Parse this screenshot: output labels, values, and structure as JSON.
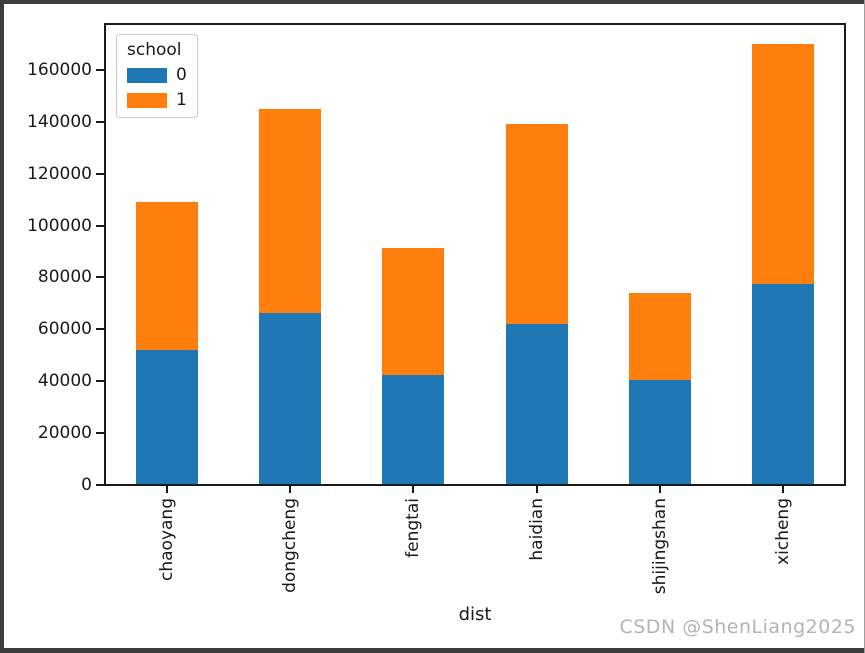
{
  "watermark": "CSDN @ShenLiang2025",
  "chart_data": {
    "type": "bar",
    "stacked": true,
    "title": "",
    "xlabel": "dist",
    "ylabel": "",
    "categories": [
      "chaoyang",
      "dongcheng",
      "fengtai",
      "haidian",
      "shijingshan",
      "xicheng"
    ],
    "series": [
      {
        "name": "0",
        "color": "#1f77b4",
        "values": [
          51500,
          66000,
          42000,
          61500,
          40000,
          77000
        ]
      },
      {
        "name": "1",
        "color": "#ff7f0e",
        "values": [
          57000,
          78500,
          49000,
          77000,
          33500,
          92500
        ]
      }
    ],
    "totals": [
      108500,
      144500,
      91000,
      138500,
      73500,
      169500
    ],
    "legend": {
      "title": "school",
      "position": "upper left"
    },
    "ylim": [
      0,
      177700
    ],
    "yticks": [
      0,
      20000,
      40000,
      60000,
      80000,
      100000,
      120000,
      140000,
      160000
    ],
    "grid": false
  }
}
